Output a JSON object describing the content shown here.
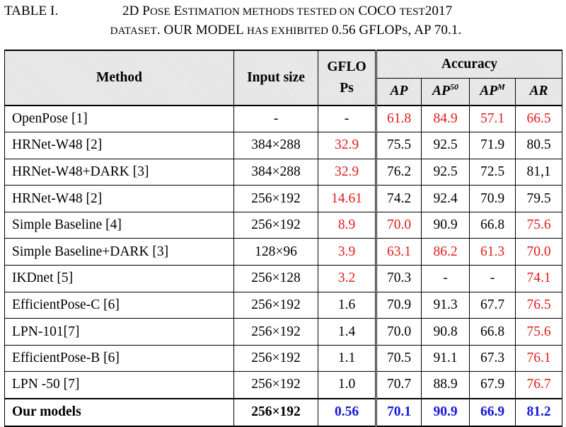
{
  "caption": {
    "label": "TABLE I.",
    "line1": "2D POSE ESTIMATION METHODS TESTED ON COCO TEST2017",
    "line2": "DATASET. OUR MODEL HAS EXHIBITED 0.56 GFLOPS, AP 70.1."
  },
  "headers": {
    "method": "Method",
    "input_size": "Input size",
    "gflops_line1": "GFLO",
    "gflops_line2": "Ps",
    "accuracy": "Accuracy",
    "ap": "AP",
    "ap50_base": "AP",
    "ap50_sup": "50",
    "apm_base": "AP",
    "apm_sup": "M",
    "ar": "AR"
  },
  "highlight_colors": {
    "red": "#e31b1b",
    "blue": "#1818d8"
  },
  "rows": [
    {
      "method": "OpenPose [1]",
      "input": "-",
      "gflops": "-",
      "ap": "61.8",
      "ap50": "84.9",
      "apm": "57.1",
      "ar": "66.5",
      "red": [
        "ap",
        "ap50",
        "apm",
        "ar"
      ]
    },
    {
      "method": "HRNet-W48 [2]",
      "input": "384×288",
      "gflops": "32.9",
      "ap": "75.5",
      "ap50": "92.5",
      "apm": "71.9",
      "ar": "80.5",
      "red": [
        "gflops"
      ]
    },
    {
      "method": "HRNet-W48+DARK [3]",
      "input": "384×288",
      "gflops": "32.9",
      "ap": "76.2",
      "ap50": "92.5",
      "apm": "72.5",
      "ar": "81,1",
      "red": [
        "gflops"
      ]
    },
    {
      "method": "HRNet-W48 [2]",
      "input": "256×192",
      "gflops": "14.61",
      "ap": "74.2",
      "ap50": "92.4",
      "apm": "70.9",
      "ar": "79.5",
      "red": [
        "gflops"
      ]
    },
    {
      "method": "Simple Baseline [4]",
      "input": "256×192",
      "gflops": "8.9",
      "ap": "70.0",
      "ap50": "90.9",
      "apm": "66.8",
      "ar": "75.6",
      "red": [
        "gflops",
        "ap",
        "ar"
      ]
    },
    {
      "method": "Simple Baseline+DARK [3]",
      "input": "128×96",
      "gflops": "3.9",
      "ap": "63.1",
      "ap50": "86.2",
      "apm": "61.3",
      "ar": "70.0",
      "red": [
        "gflops",
        "ap",
        "ap50",
        "apm",
        "ar"
      ]
    },
    {
      "method": "IKDnet [5]",
      "input": "256×128",
      "gflops": "3.2",
      "ap": "70.3",
      "ap50": "-",
      "apm": "-",
      "ar": "74.1",
      "red": [
        "gflops",
        "ar"
      ]
    },
    {
      "method": "EfficientPose-C [6]",
      "input": "256×192",
      "gflops": "1.6",
      "ap": "70.9",
      "ap50": "91.3",
      "apm": "67.7",
      "ar": "76.5",
      "red": [
        "ar"
      ]
    },
    {
      "method": "LPN-101[7]",
      "input": "256×192",
      "gflops": "1.4",
      "ap": "70.0",
      "ap50": "90.8",
      "apm": "66.8",
      "ar": "75.6",
      "red": [
        "ar"
      ]
    },
    {
      "method": "EfficientPose-B [6]",
      "input": "256×192",
      "gflops": "1.1",
      "ap": "70.5",
      "ap50": "91.1",
      "apm": "67.3",
      "ar": "76.1",
      "red": [
        "ar"
      ]
    },
    {
      "method": "LPN -50 [7]",
      "input": "256×192",
      "gflops": "1.0",
      "ap": "70.7",
      "ap50": "88.9",
      "apm": "67.9",
      "ar": "76.7",
      "red": [
        "ar"
      ]
    }
  ],
  "ours": {
    "method": "Our models",
    "input": "256×192",
    "gflops": "0.56",
    "ap": "70.1",
    "ap50": "90.9",
    "apm": "66.9",
    "ar": "81.2"
  }
}
